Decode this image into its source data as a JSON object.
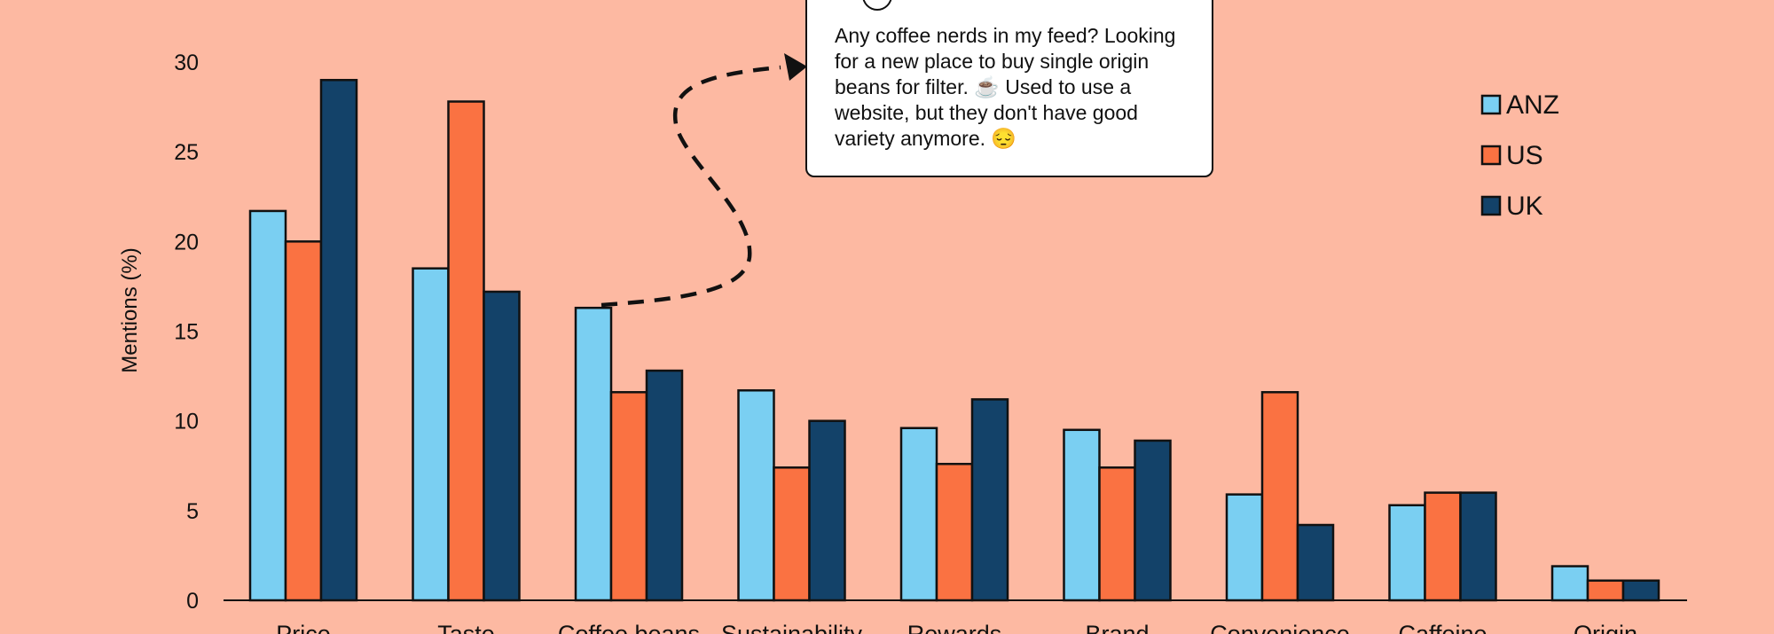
{
  "chart_data": {
    "type": "bar",
    "title": "",
    "xlabel": "",
    "ylabel": "Mentions (%)",
    "ylim": [
      0,
      30
    ],
    "yticks": [
      0,
      5,
      10,
      15,
      20,
      25,
      30
    ],
    "categories": [
      "Price",
      "Taste",
      "Coffee beans",
      "Sustainability",
      "Rewards",
      "Brand",
      "Convenience",
      "Caffeine",
      "Origin"
    ],
    "series": [
      {
        "name": "ANZ",
        "color": "#7ACFF2",
        "values": [
          21.7,
          18.5,
          16.3,
          11.7,
          9.6,
          9.5,
          5.9,
          5.3,
          1.9
        ]
      },
      {
        "name": "US",
        "color": "#FA7242",
        "values": [
          20.0,
          27.8,
          11.6,
          7.4,
          7.6,
          7.4,
          11.6,
          6.0,
          1.1
        ]
      },
      {
        "name": "UK",
        "color": "#134269",
        "values": [
          29.0,
          17.2,
          12.8,
          10.0,
          11.2,
          8.9,
          4.2,
          6.0,
          1.1
        ]
      }
    ],
    "legend_position": "top-right",
    "grid": false,
    "annotation": {
      "text": "Any coffee nerds in my feed? Looking for a new place to buy single origin beans for filter. ☕ Used to use a website, but they don't have good variety anymore. 😔",
      "points_to": "Coffee beans"
    }
  }
}
